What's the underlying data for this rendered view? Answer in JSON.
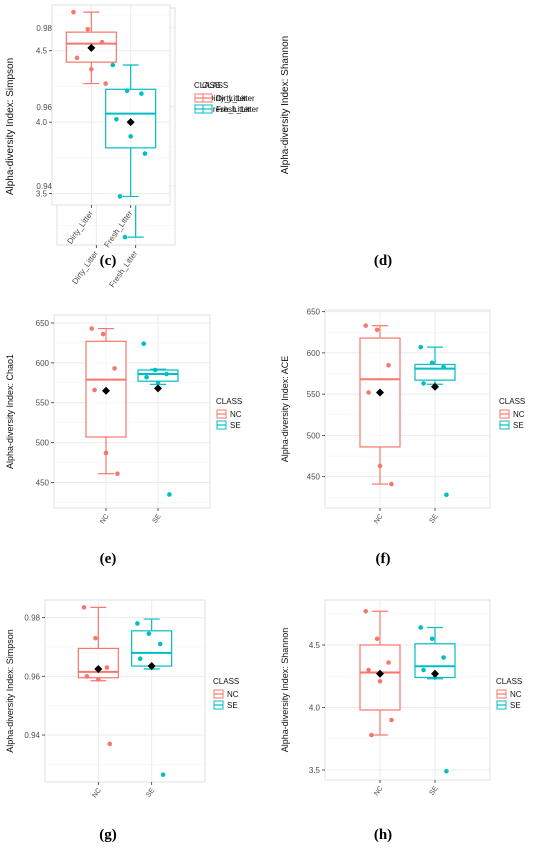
{
  "colors": {
    "a": "#F8766D",
    "b": "#00BFC4",
    "mean": "#000000",
    "grid": "#EBEBEB",
    "axis_text": "#4D4D4D"
  },
  "legend_label": "CLASS",
  "chart_data": [
    {
      "id": "c",
      "caption": "(c)",
      "type": "box",
      "ylabel": "Alpha-diversity Index: Simpson",
      "legend_title": "CLASS",
      "categories": [
        "Dirty_Litter",
        "Fresh_Litter"
      ],
      "ylim": [
        0.925,
        0.985
      ],
      "yticks": [
        0.94,
        0.96,
        0.98
      ],
      "ytick_labels": [
        "0.94",
        "0.96",
        "0.98"
      ],
      "boxes": [
        {
          "name": "Dirty_Litter",
          "min": 0.9615,
          "q1": 0.967,
          "median": 0.975,
          "q3": 0.9785,
          "max": 0.9835,
          "mean": 0.973,
          "points": [
            0.9835,
            0.98,
            0.9745,
            0.971,
            0.965,
            0.9615
          ]
        },
        {
          "name": "Fresh_Litter",
          "min": 0.927,
          "q1": 0.9425,
          "median": 0.9595,
          "q3": 0.963,
          "max": 0.971,
          "mean": 0.9525,
          "points": [
            0.971,
            0.963,
            0.96,
            0.958,
            0.9475,
            0.9375,
            0.927
          ]
        }
      ]
    },
    {
      "id": "d",
      "caption": "(d)",
      "type": "box",
      "ylabel": "Alpha-diversity Index: Shannon",
      "legend_title": "CLASS",
      "categories": [
        "Dirty_Litter",
        "Fresh_Litter"
      ],
      "ylim": [
        3.42,
        4.82
      ],
      "yticks": [
        3.5,
        4.0,
        4.5
      ],
      "ytick_labels": [
        "3.5",
        "4.0",
        "4.5"
      ],
      "boxes": [
        {
          "name": "Dirty_Litter",
          "min": 4.27,
          "q1": 4.42,
          "median": 4.55,
          "q3": 4.63,
          "max": 4.77,
          "mean": 4.52,
          "points": [
            4.77,
            4.65,
            4.56,
            4.45,
            4.37,
            4.27
          ]
        },
        {
          "name": "Fresh_Litter",
          "min": 3.48,
          "q1": 3.82,
          "median": 4.06,
          "q3": 4.23,
          "max": 4.4,
          "mean": 4.0,
          "points": [
            4.4,
            4.22,
            4.2,
            4.02,
            3.9,
            3.78,
            3.48
          ]
        }
      ]
    },
    {
      "id": "e",
      "caption": "(e)",
      "type": "box",
      "ylabel": "Alpha-diversity Index: Chao1",
      "legend_title": "CLASS",
      "categories": [
        "NC",
        "SE"
      ],
      "ylim": [
        418,
        660
      ],
      "yticks": [
        450,
        500,
        550,
        600,
        650
      ],
      "ytick_labels": [
        "450",
        "500",
        "550",
        "600",
        "650"
      ],
      "boxes": [
        {
          "name": "NC",
          "min": 461,
          "q1": 507,
          "median": 579,
          "q3": 627,
          "max": 643,
          "mean": 565,
          "points": [
            643,
            636,
            593,
            566,
            487,
            461
          ]
        },
        {
          "name": "SE",
          "min": 573,
          "q1": 577,
          "median": 586,
          "q3": 591,
          "max": 592,
          "mean": 568,
          "points": [
            624,
            591,
            586,
            582,
            575,
            435
          ]
        }
      ]
    },
    {
      "id": "f",
      "caption": "(f)",
      "type": "box",
      "ylabel": "Alpha-diversity Index: ACE",
      "legend_title": "CLASS",
      "categories": [
        "NC",
        "SE"
      ],
      "ylim": [
        412,
        652
      ],
      "yticks": [
        450,
        500,
        550,
        600,
        650
      ],
      "ytick_labels": [
        "450",
        "500",
        "550",
        "600",
        "650"
      ],
      "boxes": [
        {
          "name": "NC",
          "min": 441,
          "q1": 486,
          "median": 568,
          "q3": 618,
          "max": 633,
          "mean": 552,
          "points": [
            633,
            628,
            585,
            552,
            463,
            441
          ]
        },
        {
          "name": "SE",
          "min": 562,
          "q1": 567,
          "median": 581,
          "q3": 586,
          "max": 607,
          "mean": 559,
          "points": [
            607,
            588,
            583,
            563,
            560,
            428
          ]
        }
      ]
    },
    {
      "id": "g",
      "caption": "(g)",
      "type": "box",
      "ylabel": "Alpha-diversity Index: Simpson",
      "legend_title": "CLASS",
      "categories": [
        "NC",
        "SE"
      ],
      "ylim": [
        0.924,
        0.986
      ],
      "yticks": [
        0.94,
        0.96,
        0.98
      ],
      "ytick_labels": [
        "0.94",
        "0.96",
        "0.98"
      ],
      "boxes": [
        {
          "name": "NC",
          "min": 0.9585,
          "q1": 0.9595,
          "median": 0.9615,
          "q3": 0.9695,
          "max": 0.9835,
          "mean": 0.9625,
          "points": [
            0.9835,
            0.973,
            0.963,
            0.96,
            0.959,
            0.937
          ]
        },
        {
          "name": "SE",
          "min": 0.9625,
          "q1": 0.9635,
          "median": 0.968,
          "q3": 0.9755,
          "max": 0.9795,
          "mean": 0.9635,
          "points": [
            0.978,
            0.9745,
            0.971,
            0.966,
            0.963,
            0.9265
          ]
        }
      ]
    },
    {
      "id": "h",
      "caption": "(h)",
      "type": "box",
      "ylabel": "Alpha-diversity Index: Shannon",
      "legend_title": "CLASS",
      "categories": [
        "NC",
        "SE"
      ],
      "ylim": [
        3.42,
        4.86
      ],
      "yticks": [
        3.5,
        4.0,
        4.5
      ],
      "ytick_labels": [
        "3.5",
        "4.0",
        "4.5"
      ],
      "boxes": [
        {
          "name": "NC",
          "min": 3.78,
          "q1": 3.98,
          "median": 4.28,
          "q3": 4.5,
          "max": 4.77,
          "mean": 4.27,
          "points": [
            4.77,
            4.55,
            4.36,
            4.3,
            4.21,
            3.9,
            3.78
          ]
        },
        {
          "name": "SE",
          "min": 4.23,
          "q1": 4.24,
          "median": 4.33,
          "q3": 4.51,
          "max": 4.64,
          "mean": 4.27,
          "points": [
            4.64,
            4.55,
            4.4,
            4.3,
            4.24,
            3.49
          ]
        }
      ]
    }
  ]
}
